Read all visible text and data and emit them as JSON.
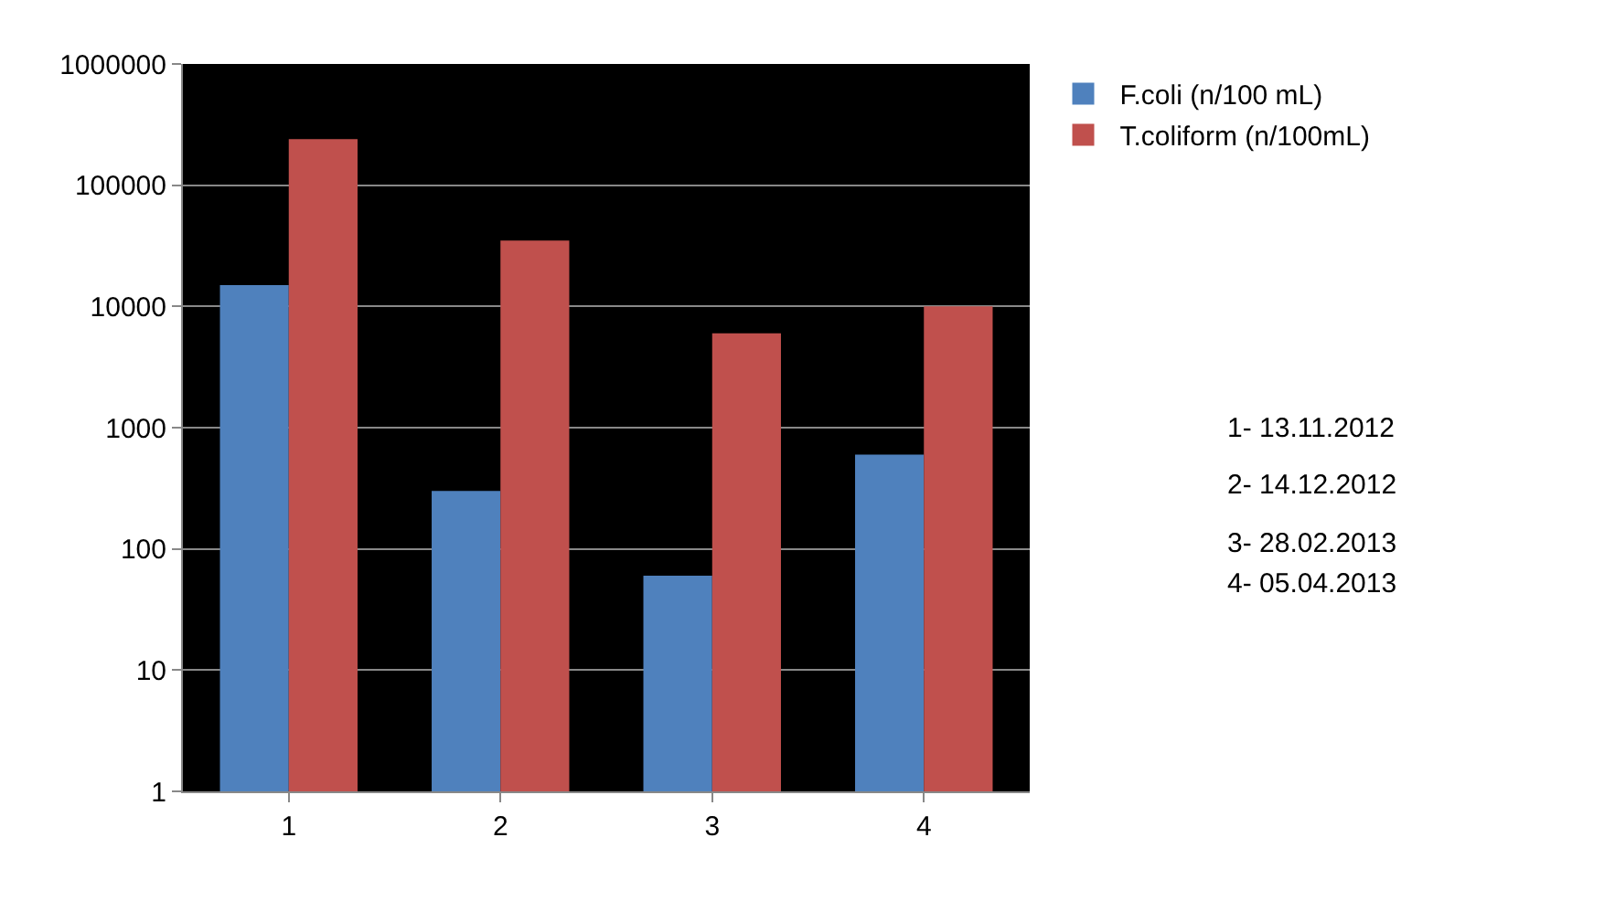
{
  "chart_data": {
    "type": "bar",
    "categories": [
      "1",
      "2",
      "3",
      "4"
    ],
    "series": [
      {
        "name": "F.coli (n/100 mL)",
        "color": "#4f81bd",
        "values": [
          15000,
          300,
          60,
          600
        ]
      },
      {
        "name": "T.coliform (n/100mL)",
        "color": "#c0504d",
        "values": [
          240000,
          35000,
          6000,
          10000
        ]
      }
    ],
    "log": true,
    "ylim": [
      1,
      1000000
    ],
    "yticks": [
      1,
      10,
      100,
      1000,
      10000,
      100000,
      1000000
    ],
    "grid": "y",
    "legend": "top right",
    "annotations": [
      "1- 13.11.2012",
      "2- 14.12.2012",
      "3- 28.02.2013",
      "4- 05.04.2013"
    ]
  }
}
